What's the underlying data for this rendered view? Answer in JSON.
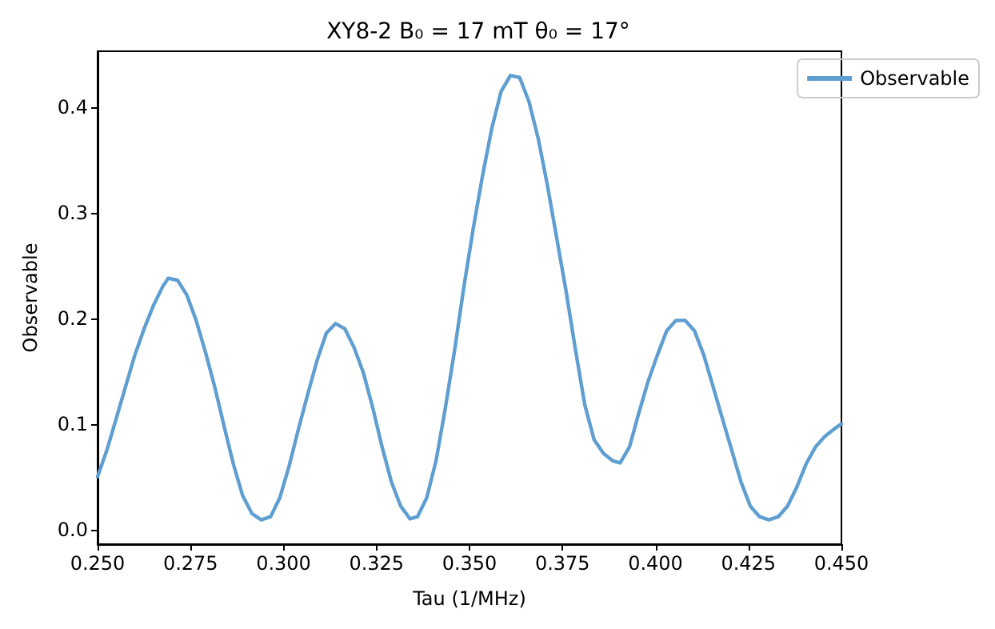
{
  "chart_data": {
    "type": "line",
    "title": "XY8-2 B₀ = 17 mT θ₀ = 17°",
    "xlabel": "Tau (1/MHz)",
    "ylabel": "Observable",
    "xlim": [
      0.25,
      0.45
    ],
    "xticks": [
      {
        "value": 0.25,
        "label": "0.250"
      },
      {
        "value": 0.275,
        "label": "0.275"
      },
      {
        "value": 0.3,
        "label": "0.300"
      },
      {
        "value": 0.325,
        "label": "0.325"
      },
      {
        "value": 0.35,
        "label": "0.350"
      },
      {
        "value": 0.375,
        "label": "0.375"
      },
      {
        "value": 0.4,
        "label": "0.400"
      },
      {
        "value": 0.425,
        "label": "0.425"
      },
      {
        "value": 0.45,
        "label": "0.450"
      }
    ],
    "ylim": [
      -0.014,
      0.453
    ],
    "yticks": [
      {
        "value": 0,
        "label": "0.0"
      },
      {
        "value": 0.1,
        "label": "0.1"
      },
      {
        "value": 0.2,
        "label": "0.2"
      },
      {
        "value": 0.3,
        "label": "0.3"
      },
      {
        "value": 0.4,
        "label": "0.4"
      }
    ],
    "grid": false,
    "legend": "top right",
    "marker": "none",
    "line_style": "solid",
    "series": [
      {
        "name": "Observable",
        "color": "#5f9ed1",
        "x": [
          0.25,
          0.2525,
          0.255,
          0.2575,
          0.26,
          0.2625,
          0.265,
          0.2675,
          0.269,
          0.2715,
          0.274,
          0.2765,
          0.279,
          0.2815,
          0.284,
          0.2865,
          0.289,
          0.2915,
          0.294,
          0.2965,
          0.299,
          0.3015,
          0.304,
          0.3065,
          0.309,
          0.3115,
          0.314,
          0.3165,
          0.319,
          0.3215,
          0.324,
          0.3265,
          0.329,
          0.3315,
          0.334,
          0.336,
          0.3385,
          0.341,
          0.3435,
          0.346,
          0.3485,
          0.351,
          0.3535,
          0.356,
          0.3585,
          0.361,
          0.3635,
          0.366,
          0.3685,
          0.371,
          0.3735,
          0.376,
          0.3785,
          0.381,
          0.3835,
          0.386,
          0.3885,
          0.3905,
          0.393,
          0.3955,
          0.398,
          0.4005,
          0.403,
          0.4055,
          0.408,
          0.4105,
          0.413,
          0.4155,
          0.418,
          0.4205,
          0.423,
          0.4255,
          0.428,
          0.4305,
          0.433,
          0.4355,
          0.438,
          0.4405,
          0.443,
          0.4455,
          0.448,
          0.45
        ],
        "values": [
          0.05,
          0.075,
          0.105,
          0.135,
          0.165,
          0.19,
          0.212,
          0.23,
          0.238,
          0.236,
          0.222,
          0.198,
          0.168,
          0.135,
          0.098,
          0.062,
          0.032,
          0.015,
          0.009,
          0.012,
          0.03,
          0.06,
          0.095,
          0.128,
          0.16,
          0.186,
          0.195,
          0.19,
          0.172,
          0.148,
          0.115,
          0.078,
          0.045,
          0.022,
          0.01,
          0.012,
          0.03,
          0.065,
          0.115,
          0.17,
          0.23,
          0.285,
          0.335,
          0.38,
          0.415,
          0.43,
          0.428,
          0.405,
          0.37,
          0.325,
          0.275,
          0.225,
          0.17,
          0.118,
          0.085,
          0.072,
          0.065,
          0.063,
          0.078,
          0.11,
          0.14,
          0.165,
          0.188,
          0.198,
          0.198,
          0.188,
          0.165,
          0.135,
          0.105,
          0.075,
          0.045,
          0.022,
          0.012,
          0.009,
          0.012,
          0.022,
          0.04,
          0.062,
          0.078,
          0.088,
          0.095,
          0.1
        ]
      }
    ]
  }
}
